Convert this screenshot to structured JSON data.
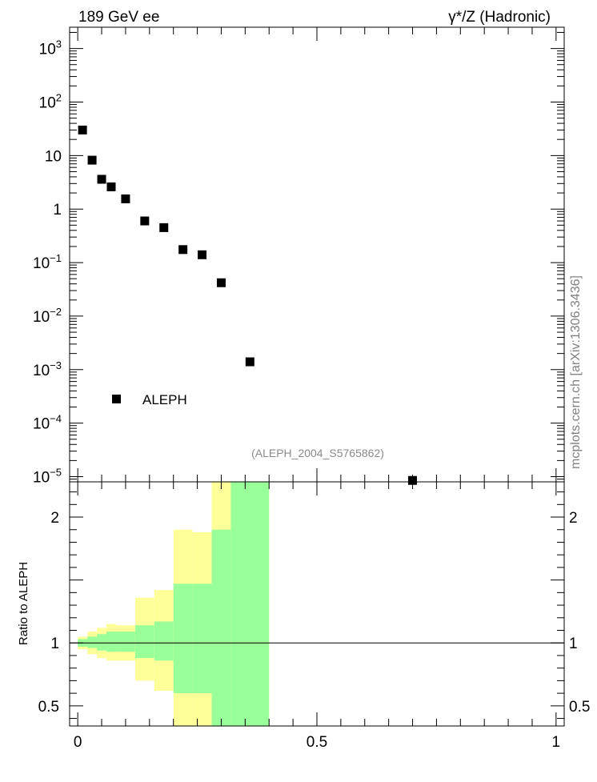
{
  "header": {
    "left_title": "189 GeV ee",
    "right_title": "γ*/Z (Hadronic)"
  },
  "side_label": "mcplots.cern.ch [arXiv:1306.3436]",
  "analysis_tag": "(ALEPH_2004_S5765862)",
  "colors": {
    "marker": "#000000",
    "band_inner": "#99ff99",
    "band_outer": "#ffff99",
    "reference_line": "#000000"
  },
  "chart_data": [
    {
      "type": "scatter",
      "panel": "main",
      "yscale": "log",
      "ylim": [
        8e-06,
        2500
      ],
      "xlim": [
        -0.017,
        1.017
      ],
      "xlabel": "",
      "ylabel": "",
      "legend": {
        "placement": "bottom-left",
        "entries": [
          "ALEPH"
        ]
      },
      "ytick_labels": [
        {
          "value": 1000,
          "base": "10",
          "exp": "3"
        },
        {
          "value": 100,
          "base": "10",
          "exp": "2"
        },
        {
          "value": 10,
          "base": "10",
          "exp": ""
        },
        {
          "value": 1,
          "base": "1",
          "exp": ""
        },
        {
          "value": 0.1,
          "base": "10",
          "exp": "−1"
        },
        {
          "value": 0.01,
          "base": "10",
          "exp": "−2"
        },
        {
          "value": 0.001,
          "base": "10",
          "exp": "−3"
        },
        {
          "value": 0.0001,
          "base": "10",
          "exp": "−4"
        },
        {
          "value": 1e-05,
          "base": "10",
          "exp": "−5"
        }
      ],
      "series": [
        {
          "name": "ALEPH",
          "x": [
            0.01,
            0.03,
            0.05,
            0.07,
            0.1,
            0.14,
            0.18,
            0.22,
            0.26,
            0.3,
            0.36,
            0.7
          ],
          "y": [
            30,
            8.2,
            3.6,
            2.6,
            1.55,
            0.6,
            0.45,
            0.175,
            0.14,
            0.042,
            0.0014,
            8.5e-06
          ]
        }
      ]
    },
    {
      "type": "area",
      "panel": "ratio",
      "ylabel": "Ratio to ALEPH",
      "ylim": [
        0.34,
        2.28
      ],
      "xlim": [
        -0.017,
        1.017
      ],
      "xtick_labels": [
        {
          "value": 0,
          "label": "0"
        },
        {
          "value": 0.5,
          "label": "0.5"
        },
        {
          "value": 1,
          "label": "1"
        }
      ],
      "ytick_labels": [
        {
          "value": 2,
          "label": "2"
        },
        {
          "value": 1,
          "label": "1"
        },
        {
          "value": 0.5,
          "label": "0.5"
        }
      ],
      "reference_line": 1,
      "bins": [
        {
          "x0": 0.0,
          "x1": 0.02,
          "inner": [
            0.97,
            1.03
          ],
          "outer": [
            0.95,
            1.05
          ]
        },
        {
          "x0": 0.02,
          "x1": 0.04,
          "inner": [
            0.96,
            1.05
          ],
          "outer": [
            0.91,
            1.09
          ]
        },
        {
          "x0": 0.04,
          "x1": 0.06,
          "inner": [
            0.94,
            1.07
          ],
          "outer": [
            0.88,
            1.12
          ]
        },
        {
          "x0": 0.06,
          "x1": 0.08,
          "inner": [
            0.93,
            1.09
          ],
          "outer": [
            0.86,
            1.15
          ]
        },
        {
          "x0": 0.08,
          "x1": 0.12,
          "inner": [
            0.93,
            1.09
          ],
          "outer": [
            0.86,
            1.14
          ]
        },
        {
          "x0": 0.12,
          "x1": 0.16,
          "inner": [
            0.88,
            1.14
          ],
          "outer": [
            0.7,
            1.36
          ]
        },
        {
          "x0": 0.16,
          "x1": 0.2,
          "inner": [
            0.86,
            1.17
          ],
          "outer": [
            0.62,
            1.42
          ]
        },
        {
          "x0": 0.2,
          "x1": 0.24,
          "inner": [
            0.6,
            1.47
          ],
          "outer": [
            0.34,
            1.9
          ]
        },
        {
          "x0": 0.24,
          "x1": 0.28,
          "inner": [
            0.6,
            1.47
          ],
          "outer": [
            0.34,
            1.88
          ]
        },
        {
          "x0": 0.28,
          "x1": 0.32,
          "inner": [
            0.34,
            1.9
          ],
          "outer": [
            0.34,
            2.28
          ]
        },
        {
          "x0": 0.32,
          "x1": 0.4,
          "inner": [
            0.34,
            2.28
          ],
          "outer": [
            0.34,
            2.28
          ]
        }
      ]
    }
  ]
}
